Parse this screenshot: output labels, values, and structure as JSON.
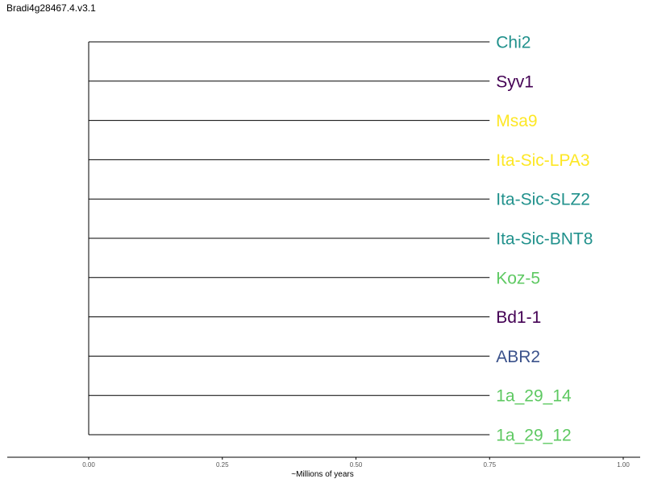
{
  "chart_data": {
    "type": "dendrogram",
    "title": "Bradi4g28467.4.v3.1",
    "xlabel": "~Millions of years",
    "xlim": [
      -0.15,
      1.03
    ],
    "x_ticks": [
      "0.00",
      "0.25",
      "0.50",
      "0.75",
      "1.00"
    ],
    "root_x": 0.0,
    "leaves": [
      {
        "label": "Chi2",
        "x": 0.75,
        "color": "#21918c"
      },
      {
        "label": "Syv1",
        "x": 0.75,
        "color": "#440154"
      },
      {
        "label": "Msa9",
        "x": 0.75,
        "color": "#fde725"
      },
      {
        "label": "Ita-Sic-LPA3",
        "x": 0.75,
        "color": "#fde725"
      },
      {
        "label": "Ita-Sic-SLZ2",
        "x": 0.75,
        "color": "#21918c"
      },
      {
        "label": "Ita-Sic-BNT8",
        "x": 0.75,
        "color": "#21918c"
      },
      {
        "label": "Koz-5",
        "x": 0.75,
        "color": "#5ec962"
      },
      {
        "label": "Bd1-1",
        "x": 0.75,
        "color": "#440154"
      },
      {
        "label": "ABR2",
        "x": 0.75,
        "color": "#3b528b"
      },
      {
        "label": "1a_29_14",
        "x": 0.75,
        "color": "#5ec962"
      },
      {
        "label": "1a_29_12",
        "x": 0.75,
        "color": "#5ec962"
      }
    ],
    "grid": false,
    "legend": "none"
  }
}
